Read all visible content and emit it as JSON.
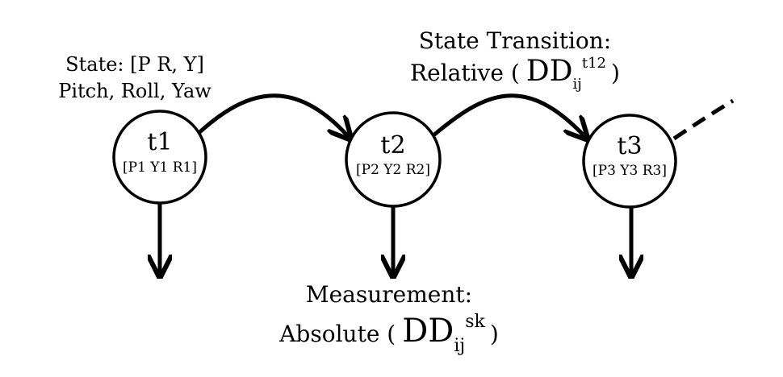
{
  "state_label": {
    "line1": "State: [P R, Y]",
    "line2": "Pitch, Roll, Yaw"
  },
  "transition_label": {
    "line1": "State Transition:",
    "line2_prefix": "Relative (",
    "symbol": "DD",
    "subscript": "ij",
    "superscript": "t12",
    "line2_suffix": ")"
  },
  "measurement_label": {
    "line1": "Measurement:",
    "line2_prefix": "Absolute (",
    "symbol": "DD",
    "subscript": "ij",
    "superscript": "sk",
    "line2_suffix": ")"
  },
  "nodes": [
    {
      "id": "t1",
      "label": "t1",
      "sublabel": "[P1 Y1 R1]"
    },
    {
      "id": "t2",
      "label": "t2",
      "sublabel": "[P2 Y2 R2]"
    },
    {
      "id": "t3",
      "label": "t3",
      "sublabel": "[P3 Y3 R3]"
    }
  ],
  "stroke_color": "#000000"
}
